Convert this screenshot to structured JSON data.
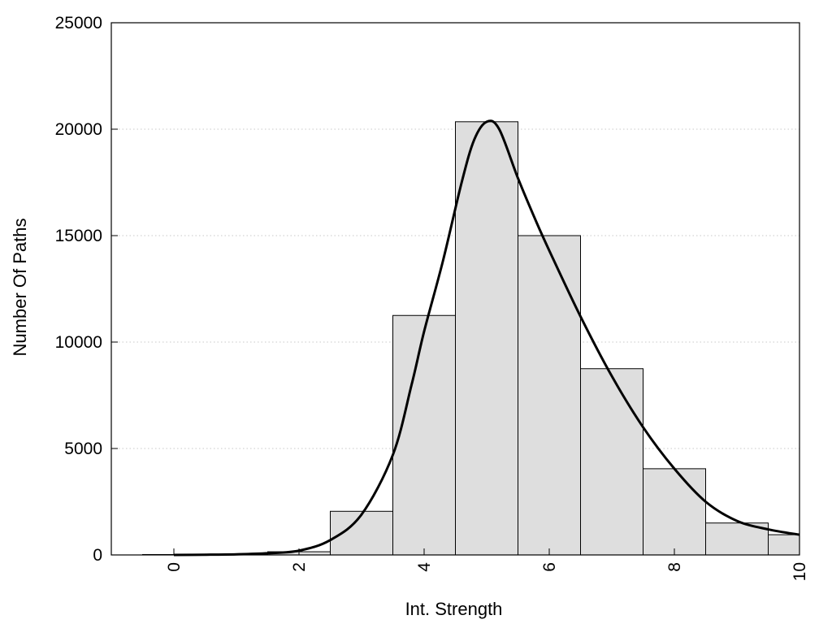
{
  "chart_data": {
    "type": "bar",
    "title": "",
    "xlabel": "Int. Strength",
    "ylabel": "Number Of Paths",
    "xlim": [
      -1,
      10
    ],
    "ylim": [
      0,
      25000
    ],
    "x_ticks": [
      0,
      2,
      4,
      6,
      8,
      10
    ],
    "y_ticks": [
      0,
      5000,
      10000,
      15000,
      20000,
      25000
    ],
    "grid": "horizontal dotted",
    "bins": [
      {
        "x": 0,
        "value": 20
      },
      {
        "x": 1,
        "value": 40
      },
      {
        "x": 2,
        "value": 150
      },
      {
        "x": 3,
        "value": 2050
      },
      {
        "x": 4,
        "value": 11250
      },
      {
        "x": 5,
        "value": 20350
      },
      {
        "x": 6,
        "value": 15000
      },
      {
        "x": 7,
        "value": 8750
      },
      {
        "x": 8,
        "value": 4050
      },
      {
        "x": 9,
        "value": 1500
      },
      {
        "x": 10,
        "value": 950
      }
    ],
    "density_curve": {
      "x": [
        0,
        0.5,
        1,
        1.5,
        2,
        2.5,
        3,
        3.5,
        3.8,
        4,
        4.3,
        4.6,
        4.8,
        5,
        5.2,
        5.5,
        5.8,
        6,
        6.5,
        7,
        7.5,
        8,
        8.5,
        9,
        9.5,
        10
      ],
      "y": [
        0,
        10,
        30,
        80,
        200,
        700,
        1900,
        4700,
        8000,
        10500,
        13800,
        17500,
        19500,
        20350,
        20000,
        17700,
        15600,
        14300,
        11200,
        8400,
        6000,
        4050,
        2500,
        1600,
        1200,
        950
      ]
    },
    "colors": {
      "bar_fill": "#dedede",
      "bar_stroke": "#000000",
      "curve": "#000000",
      "grid": "#c8c8c8"
    }
  }
}
